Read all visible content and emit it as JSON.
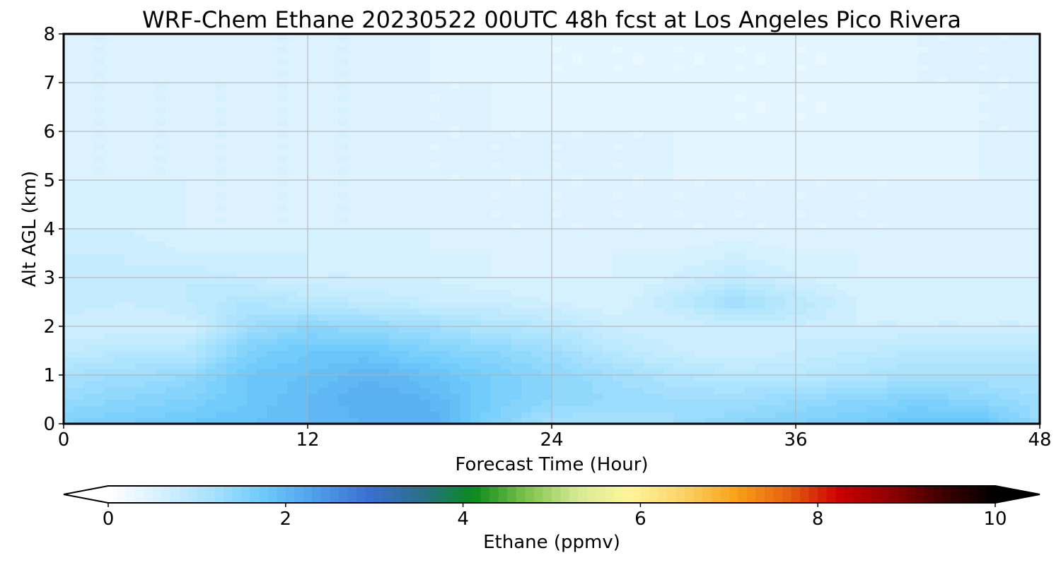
{
  "title": "WRF-Chem Ethane  20230522 00UTC 48h fcst at Los Angeles Pico Rivera",
  "chart_data": {
    "type": "heatmap",
    "title": "WRF-Chem Ethane  20230522 00UTC 48h fcst at Los Angeles Pico Rivera",
    "xlabel": "Forecast Time (Hour)",
    "ylabel": "Alt AGL (km)",
    "xlim": [
      0,
      48
    ],
    "ylim": [
      0,
      8
    ],
    "x_ticks": [
      0,
      12,
      24,
      36,
      48
    ],
    "y_ticks": [
      0,
      1,
      2,
      3,
      4,
      5,
      6,
      7,
      8
    ],
    "grid": true,
    "x": [
      0,
      3,
      6,
      9,
      12,
      15,
      18,
      21,
      24,
      27,
      30,
      33,
      36,
      39,
      42,
      45,
      48
    ],
    "y": [
      0,
      0.5,
      1,
      1.5,
      2,
      2.5,
      3,
      3.5,
      4,
      5,
      6,
      7,
      8
    ],
    "z": [
      [
        1.6,
        1.7,
        1.8,
        1.9,
        2.0,
        2.1,
        2.2,
        1.6,
        1.2,
        1.2,
        1.3,
        1.5,
        1.6,
        1.7,
        1.9,
        1.9,
        1.4
      ],
      [
        1.4,
        1.5,
        1.6,
        1.8,
        2.0,
        2.2,
        2.1,
        1.7,
        1.5,
        1.4,
        1.3,
        1.3,
        1.4,
        1.5,
        1.6,
        1.5,
        1.3
      ],
      [
        1.2,
        1.3,
        1.4,
        1.8,
        1.9,
        2.1,
        1.9,
        1.7,
        1.5,
        1.3,
        1.1,
        1.0,
        1.0,
        1.1,
        1.2,
        1.2,
        1.2
      ],
      [
        0.9,
        1.0,
        1.0,
        1.6,
        1.8,
        1.8,
        1.6,
        1.5,
        1.3,
        1.0,
        0.8,
        0.7,
        0.8,
        0.9,
        1.0,
        1.0,
        1.0
      ],
      [
        0.7,
        0.7,
        0.7,
        1.3,
        1.5,
        1.4,
        1.3,
        1.1,
        1.0,
        0.8,
        0.7,
        0.8,
        0.8,
        0.7,
        0.7,
        0.7,
        0.7
      ],
      [
        0.9,
        0.8,
        0.9,
        1.1,
        1.0,
        0.9,
        0.8,
        0.8,
        0.7,
        0.6,
        0.9,
        1.3,
        1.0,
        0.7,
        0.7,
        0.7,
        0.7
      ],
      [
        0.9,
        0.8,
        0.9,
        0.8,
        0.7,
        0.7,
        0.7,
        0.6,
        0.6,
        0.6,
        0.7,
        0.9,
        0.7,
        0.6,
        0.6,
        0.6,
        0.6
      ],
      [
        0.8,
        0.8,
        0.7,
        0.7,
        0.7,
        0.7,
        0.6,
        0.6,
        0.6,
        0.6,
        0.6,
        0.7,
        0.6,
        0.6,
        0.6,
        0.6,
        0.6
      ],
      [
        0.7,
        0.7,
        0.6,
        0.6,
        0.6,
        0.6,
        0.6,
        0.5,
        0.5,
        0.5,
        0.5,
        0.5,
        0.5,
        0.5,
        0.5,
        0.6,
        0.6
      ],
      [
        0.6,
        0.6,
        0.6,
        0.6,
        0.6,
        0.6,
        0.5,
        0.5,
        0.5,
        0.5,
        0.5,
        0.5,
        0.5,
        0.5,
        0.5,
        0.5,
        0.6
      ],
      [
        0.6,
        0.6,
        0.6,
        0.6,
        0.6,
        0.6,
        0.5,
        0.5,
        0.5,
        0.5,
        0.5,
        0.4,
        0.4,
        0.4,
        0.4,
        0.5,
        0.5
      ],
      [
        0.6,
        0.6,
        0.6,
        0.6,
        0.6,
        0.6,
        0.5,
        0.5,
        0.4,
        0.4,
        0.4,
        0.4,
        0.4,
        0.4,
        0.5,
        0.5,
        0.5
      ],
      [
        0.6,
        0.6,
        0.5,
        0.6,
        0.6,
        0.6,
        0.5,
        0.4,
        0.4,
        0.4,
        0.4,
        0.4,
        0.4,
        0.4,
        0.5,
        0.5,
        0.5
      ]
    ],
    "colorbar": {
      "label": "Ethane  (ppmv)",
      "range": [
        0,
        10
      ],
      "ticks": [
        0,
        2,
        4,
        6,
        8,
        10
      ],
      "extend": "both",
      "colors": [
        "#ffffff",
        "#d6f1ff",
        "#a6e1fd",
        "#6bc9fb",
        "#4d9ee8",
        "#3a6fd0",
        "#2a6f8a",
        "#0a8a1e",
        "#7cc24a",
        "#d7ea95",
        "#fff59a",
        "#fbd36a",
        "#f9a318",
        "#e56410",
        "#cc0000",
        "#8e0000",
        "#3d0000",
        "#000000"
      ]
    }
  }
}
